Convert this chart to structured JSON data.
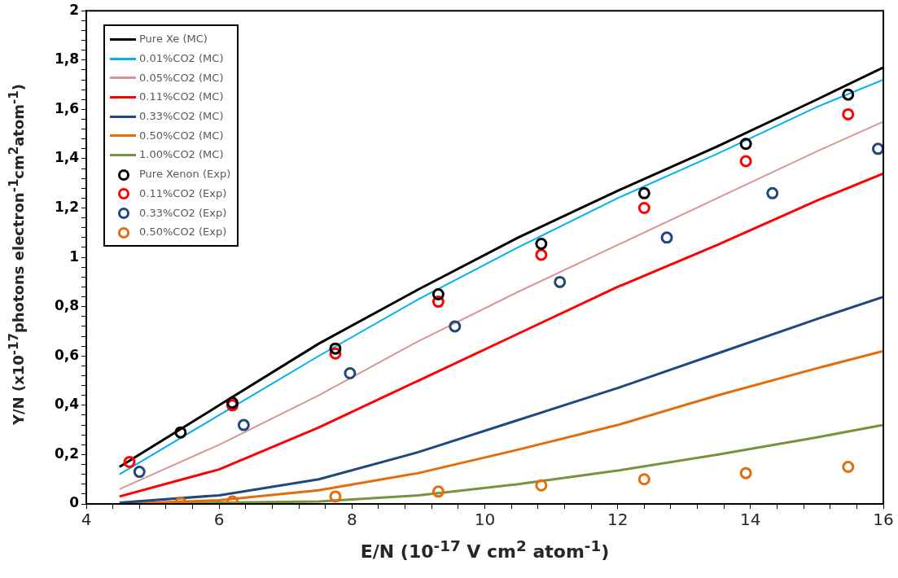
{
  "chart_data": {
    "type": "line",
    "xlabel": "E/N (10$^{-17}$ V cm$^{2}$ atom$^{-1}$)",
    "ylabel": "Y/N (x10$^{-17}$photons electron$^{-1}$cm$^{2}$atom$^{-1}$)",
    "xlim": [
      4,
      16
    ],
    "ylim": [
      0,
      2
    ],
    "xticks": [
      4,
      {
        "value": 4.4,
        "label": null
      },
      {
        "value": 4.8,
        "label": null
      },
      {
        "value": 5.2,
        "label": null
      },
      {
        "value": 5.6,
        "label": null
      },
      6,
      {
        "value": 6.4,
        "label": null
      },
      {
        "value": 6.8,
        "label": null
      },
      {
        "value": 7.2,
        "label": null
      },
      {
        "value": 7.6,
        "label": null
      },
      8,
      {
        "value": 8.4,
        "label": null
      },
      {
        "value": 8.8,
        "label": null
      },
      {
        "value": 9.2,
        "label": null
      },
      {
        "value": 9.6,
        "label": null
      },
      10,
      {
        "value": 10.4,
        "label": null
      },
      {
        "value": 10.8,
        "label": null
      },
      {
        "value": 11.2,
        "label": null
      },
      {
        "value": 11.6,
        "label": null
      },
      12,
      {
        "value": 12.4,
        "label": null
      },
      {
        "value": 12.8,
        "label": null
      },
      {
        "value": 13.2,
        "label": null
      },
      {
        "value": 13.6,
        "label": null
      },
      14,
      {
        "value": 14.4,
        "label": null
      },
      {
        "value": 14.8,
        "label": null
      },
      {
        "value": 15.2,
        "label": null
      },
      {
        "value": 15.6,
        "label": null
      },
      16
    ],
    "yticks": [
      0,
      {
        "value": 0.04,
        "label": null
      },
      {
        "value": 0.08,
        "label": null
      },
      {
        "value": 0.12,
        "label": null
      },
      {
        "value": 0.16,
        "label": null
      },
      {
        "value": 0.2,
        "label": "0,2"
      },
      {
        "value": 0.24,
        "label": null
      },
      {
        "value": 0.28,
        "label": null
      },
      {
        "value": 0.32,
        "label": null
      },
      {
        "value": 0.36,
        "label": null
      },
      {
        "value": 0.4,
        "label": "0,4"
      },
      {
        "value": 0.44,
        "label": null
      },
      {
        "value": 0.48,
        "label": null
      },
      {
        "value": 0.52,
        "label": null
      },
      {
        "value": 0.56,
        "label": null
      },
      {
        "value": 0.6,
        "label": "0,6"
      },
      {
        "value": 0.64,
        "label": null
      },
      {
        "value": 0.68,
        "label": null
      },
      {
        "value": 0.72,
        "label": null
      },
      {
        "value": 0.76,
        "label": null
      },
      {
        "value": 0.8,
        "label": "0,8"
      },
      {
        "value": 0.84,
        "label": null
      },
      {
        "value": 0.88,
        "label": null
      },
      {
        "value": 0.92,
        "label": null
      },
      {
        "value": 0.96,
        "label": null
      },
      1,
      {
        "value": 1.04,
        "label": null
      },
      {
        "value": 1.08,
        "label": null
      },
      {
        "value": 1.12,
        "label": null
      },
      {
        "value": 1.16,
        "label": null
      },
      {
        "value": 1.2,
        "label": "1,2"
      },
      {
        "value": 1.24,
        "label": null
      },
      {
        "value": 1.28,
        "label": null
      },
      {
        "value": 1.32,
        "label": null
      },
      {
        "value": 1.36,
        "label": null
      },
      {
        "value": 1.4,
        "label": "1,4"
      },
      {
        "value": 1.44,
        "label": null
      },
      {
        "value": 1.48,
        "label": null
      },
      {
        "value": 1.52,
        "label": null
      },
      {
        "value": 1.56,
        "label": null
      },
      {
        "value": 1.6,
        "label": "1,6"
      },
      {
        "value": 1.64,
        "label": null
      },
      {
        "value": 1.68,
        "label": null
      },
      {
        "value": 1.72,
        "label": null
      },
      {
        "value": 1.76,
        "label": null
      },
      {
        "value": 1.8,
        "label": "1,8"
      },
      {
        "value": 1.84,
        "label": null
      },
      {
        "value": 1.88,
        "label": null
      },
      {
        "value": 1.92,
        "label": null
      },
      {
        "value": 1.96,
        "label": null
      },
      2
    ],
    "legend": "top left",
    "series": [
      {
        "name": "Pure Xe (MC)",
        "type": "line",
        "marker": "none",
        "color": "#000000",
        "x": [
          4.5,
          6,
          7.5,
          9,
          10.5,
          12,
          13.5,
          15,
          16
        ],
        "values": [
          0.15,
          0.4,
          0.65,
          0.87,
          1.08,
          1.27,
          1.45,
          1.64,
          1.77
        ]
      },
      {
        "name": "0.01%CO2 (MC)",
        "type": "line",
        "marker": "none",
        "color": "#00b0f0",
        "x": [
          4.5,
          6,
          7.5,
          9,
          10.5,
          12,
          13.5,
          15,
          16
        ],
        "values": [
          0.12,
          0.36,
          0.6,
          0.83,
          1.04,
          1.24,
          1.42,
          1.61,
          1.72
        ]
      },
      {
        "name": "0.05%CO2 (MC)",
        "type": "line",
        "marker": "none",
        "color": "#d99694",
        "x": [
          4.5,
          6,
          7.5,
          9,
          10.5,
          12,
          13.5,
          15,
          16
        ],
        "values": [
          0.06,
          0.24,
          0.44,
          0.66,
          0.86,
          1.05,
          1.24,
          1.43,
          1.55
        ]
      },
      {
        "name": "0.11%CO2 (MC)",
        "type": "line",
        "marker": "none",
        "color": "#ff0000",
        "x": [
          4.5,
          6,
          7.5,
          9,
          10.5,
          12,
          13.5,
          15,
          16
        ],
        "values": [
          0.03,
          0.14,
          0.31,
          0.5,
          0.69,
          0.88,
          1.05,
          1.23,
          1.34
        ]
      },
      {
        "name": "0.33%CO2 (MC)",
        "type": "line",
        "marker": "none",
        "color": "#1f497d",
        "x": [
          4.5,
          6,
          7.5,
          9,
          10.5,
          12,
          13.5,
          15,
          16
        ],
        "values": [
          0.005,
          0.035,
          0.1,
          0.21,
          0.34,
          0.47,
          0.61,
          0.75,
          0.84
        ]
      },
      {
        "name": "0.50%CO2 (MC)",
        "type": "line",
        "marker": "none",
        "color": "#e46c0a",
        "x": [
          4.5,
          6,
          7.5,
          9,
          10.5,
          12,
          13.5,
          15,
          16
        ],
        "values": [
          0,
          0.015,
          0.055,
          0.125,
          0.22,
          0.32,
          0.44,
          0.55,
          0.62
        ]
      },
      {
        "name": "1.00%CO2 (MC)",
        "type": "line",
        "marker": "none",
        "color": "#77933c",
        "x": [
          4.5,
          6,
          7.5,
          9,
          10.5,
          12,
          13.5,
          15,
          16
        ],
        "values": [
          0,
          0.005,
          0.01,
          0.035,
          0.08,
          0.135,
          0.2,
          0.27,
          0.32
        ]
      },
      {
        "name": "Pure Xenon (Exp)",
        "type": "scatter",
        "marker": "circle",
        "color": "#000000",
        "x": [
          5.42,
          6.2,
          7.75,
          9.3,
          10.85,
          12.4,
          13.93,
          15.47
        ],
        "values": [
          0.29,
          0.41,
          0.63,
          0.85,
          1.055,
          1.26,
          1.46,
          1.66
        ]
      },
      {
        "name": "0.11%CO2 (Exp)",
        "type": "scatter",
        "marker": "circle",
        "color": "#ff0000",
        "x": [
          4.65,
          6.2,
          7.75,
          9.3,
          10.85,
          12.4,
          13.93,
          15.47
        ],
        "values": [
          0.17,
          0.4,
          0.61,
          0.82,
          1.01,
          1.2,
          1.39,
          1.58
        ]
      },
      {
        "name": "0.33%CO2 (Exp)",
        "type": "scatter",
        "marker": "circle",
        "color": "#1f497d",
        "x": [
          4.8,
          6.37,
          7.97,
          9.55,
          11.13,
          12.74,
          14.33,
          15.92
        ],
        "values": [
          0.13,
          0.32,
          0.53,
          0.72,
          0.9,
          1.08,
          1.26,
          1.44
        ]
      },
      {
        "name": "0.50%CO2 (Exp)",
        "type": "scatter",
        "marker": "circle",
        "color": "#e46c0a",
        "x": [
          5.42,
          6.2,
          7.75,
          9.3,
          10.85,
          12.4,
          13.93,
          15.47
        ],
        "values": [
          0.005,
          0.01,
          0.03,
          0.05,
          0.075,
          0.1,
          0.125,
          0.15
        ]
      }
    ]
  }
}
